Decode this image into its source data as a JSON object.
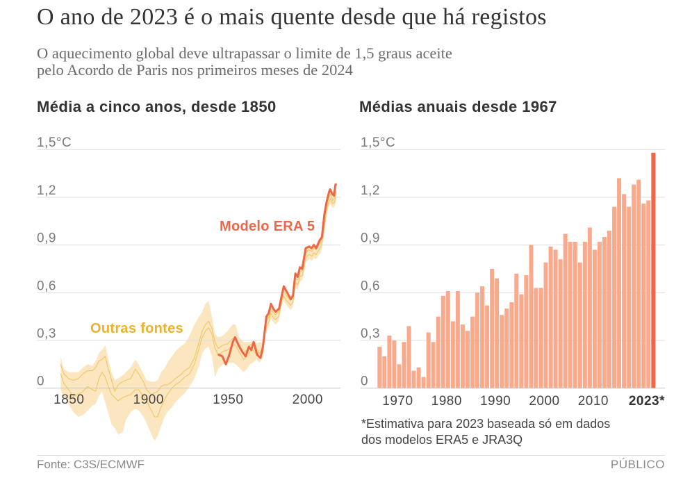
{
  "header": {
    "title": "O ano de 2023 é o mais quente desde que há registos",
    "subtitle_lines": [
      "O aquecimento global deve ultrapassar o limite de 1,5 graus aceite",
      "pelo Acordo de Paris nos primeiros meses de 2024"
    ]
  },
  "colors": {
    "era5": "#ef6646",
    "other_sources_line": "#f0c45c",
    "other_sources_label": "#ebb22e",
    "uncertainty_band": "#fbe6c0",
    "bar": "#f9aa8d",
    "bar_highlight": "#f2674a",
    "text": "#333333",
    "muted_text": "#8a8a8a"
  },
  "chart_data": [
    {
      "type": "line",
      "title": "Média a cinco anos, desde 1850",
      "xlabel": "",
      "ylabel": "°C",
      "xlim": [
        1850,
        2023
      ],
      "ylim": [
        -0.35,
        1.5
      ],
      "grid": true,
      "yticks": [
        0,
        0.3,
        0.6,
        0.9,
        1.2,
        1.5
      ],
      "ytick_labels": [
        "0",
        "0,3",
        "0,6",
        "0,9",
        "1,2",
        "1,5°C"
      ],
      "xticks": [
        1850,
        1900,
        1950,
        2000
      ],
      "xtick_labels": [
        "1850",
        "1900",
        "1950",
        "2000"
      ],
      "series": [
        {
          "name": "Modelo ERA 5",
          "label": "Modelo ERA 5",
          "color": "#ef6646",
          "x": [
            1949.4,
            1951.6,
            1953.8,
            1956,
            1958.2,
            1959.6,
            1961.8,
            1964,
            1966.2,
            1968.3,
            1969.8,
            1971.3,
            1973.5,
            1975.6,
            1977.1,
            1979.3,
            1980.7,
            1982.2,
            1983.6,
            1985.1,
            1987.3,
            1988.7,
            1990.2,
            1992.4,
            1994.6,
            1996,
            1997.5,
            1999,
            2000.4,
            2001.8,
            2004,
            2006.2,
            2007.7,
            2009.1,
            2010.6,
            2012.8,
            2014.2,
            2015.7,
            2017.1,
            2018.6,
            2019.3,
            2020.8,
            2021.8,
            2022.7,
            2023
          ],
          "y": [
            0.21,
            0.2,
            0.15,
            0.21,
            0.29,
            0.32,
            0.27,
            0.23,
            0.2,
            0.26,
            0.24,
            0.29,
            0.21,
            0.19,
            0.26,
            0.45,
            0.47,
            0.53,
            0.5,
            0.48,
            0.5,
            0.57,
            0.64,
            0.6,
            0.56,
            0.58,
            0.72,
            0.7,
            0.76,
            0.75,
            0.88,
            0.89,
            0.88,
            0.9,
            0.88,
            0.93,
            0.95,
            1.09,
            1.17,
            1.23,
            1.25,
            1.22,
            1.21,
            1.28,
            1.28
          ]
        },
        {
          "name": "Outras fontes",
          "label": "Outras fontes",
          "color": "#f0c45c",
          "label_color": "#ebb22e",
          "band_color": "#fbe6c0",
          "x": [
            1850,
            1852,
            1855,
            1858,
            1861,
            1864,
            1867,
            1870,
            1872,
            1874,
            1876,
            1878,
            1880,
            1882,
            1884,
            1886,
            1889,
            1891,
            1894,
            1897,
            1899,
            1902,
            1904,
            1907,
            1909,
            1911,
            1913,
            1915,
            1917,
            1920,
            1922,
            1925,
            1928,
            1931,
            1934,
            1937,
            1939,
            1941,
            1943,
            1945,
            1947,
            1949,
            1952,
            1955,
            1958,
            1960,
            1962,
            1965,
            1967,
            1969,
            1971,
            1973,
            1975,
            1977,
            1979,
            1981,
            1982,
            1984,
            1985,
            1987,
            1989,
            1990,
            1992,
            1994.5,
            1996,
            1997.5,
            1999,
            2000.5,
            2002,
            2004,
            2006,
            2008,
            2009,
            2010.5,
            2013,
            2014,
            2016,
            2017,
            2018.5,
            2019.5,
            2021,
            2022,
            2023
          ],
          "line_upper": [
            0.15,
            0.09,
            0.06,
            0.05,
            0.06,
            0.09,
            0.11,
            0.11,
            0.13,
            0.17,
            0.18,
            0.2,
            0.12,
            0.05,
            -0.02,
            0.02,
            0.04,
            0.05,
            0.06,
            0.12,
            0.09,
            0.04,
            -0.01,
            -0.04,
            -0.03,
            -0.02,
            0.01,
            0.02,
            0.02,
            0.04,
            0.06,
            0.08,
            0.11,
            0.13,
            0.19,
            0.29,
            0.36,
            0.4,
            0.42,
            0.38,
            0.29,
            0.25,
            0.27,
            0.28,
            0.31,
            0.31,
            0.27,
            0.22,
            0.24,
            0.27,
            0.28,
            0.25,
            0.22,
            0.25,
            0.42,
            0.45,
            0.5,
            0.47,
            0.46,
            0.48,
            0.58,
            0.61,
            0.58,
            0.55,
            0.57,
            0.69,
            0.68,
            0.73,
            0.74,
            0.85,
            0.87,
            0.86,
            0.88,
            0.87,
            0.91,
            0.93,
            1.06,
            1.14,
            1.2,
            1.22,
            1.18,
            1.19,
            1.23
          ],
          "line_lower": [
            0.09,
            0.03,
            -0.01,
            -0.05,
            -0.04,
            -0.02,
            0.01,
            -0.01,
            -0.02,
            0.06,
            0.1,
            0.07,
            0.01,
            -0.04,
            -0.06,
            -0.08,
            -0.06,
            -0.05,
            -0.04,
            -0.01,
            -0.01,
            -0.05,
            -0.08,
            -0.14,
            -0.18,
            -0.18,
            -0.12,
            -0.08,
            -0.04,
            0.0,
            0.02,
            0.04,
            0.07,
            0.09,
            0.15,
            0.25,
            0.32,
            0.36,
            0.38,
            0.34,
            0.25,
            0.21,
            0.23,
            0.24,
            0.27,
            0.27,
            0.23,
            0.18,
            0.2,
            0.23,
            0.24,
            0.21,
            0.19,
            0.22,
            0.38,
            0.42,
            0.47,
            0.44,
            0.43,
            0.45,
            0.55,
            0.58,
            0.55,
            0.52,
            0.54,
            0.66,
            0.65,
            0.7,
            0.71,
            0.82,
            0.84,
            0.83,
            0.85,
            0.84,
            0.88,
            0.9,
            1.03,
            1.11,
            1.17,
            1.19,
            1.16,
            1.17,
            1.2
          ],
          "band_upper": [
            0.2,
            0.12,
            0.1,
            0.1,
            0.1,
            0.13,
            0.15,
            0.14,
            0.17,
            0.22,
            0.24,
            0.27,
            0.18,
            0.1,
            0.05,
            0.06,
            0.08,
            0.1,
            0.13,
            0.18,
            0.15,
            0.09,
            0.05,
            0.04,
            0.04,
            0.05,
            0.1,
            0.12,
            0.16,
            0.2,
            0.23,
            0.26,
            0.28,
            0.33,
            0.4,
            0.45,
            0.48,
            0.53,
            0.55,
            0.45,
            0.34,
            0.32,
            0.33,
            0.36,
            0.4,
            0.4,
            0.32,
            0.29,
            0.29,
            0.29,
            0.3,
            0.28,
            0.29,
            0.28,
            0.45,
            0.48,
            0.53,
            0.5,
            0.49,
            0.51,
            0.61,
            0.64,
            0.61,
            0.58,
            0.6,
            0.72,
            0.71,
            0.76,
            0.77,
            0.88,
            0.9,
            0.89,
            0.91,
            0.9,
            0.94,
            0.96,
            1.09,
            1.17,
            1.23,
            1.25,
            1.21,
            1.22,
            1.26
          ],
          "band_lower": [
            -0.01,
            -0.06,
            -0.1,
            -0.15,
            -0.18,
            -0.17,
            -0.14,
            -0.11,
            -0.1,
            -0.05,
            -0.02,
            -0.09,
            -0.16,
            -0.23,
            -0.25,
            -0.29,
            -0.28,
            -0.2,
            -0.15,
            -0.13,
            -0.14,
            -0.18,
            -0.22,
            -0.29,
            -0.33,
            -0.3,
            -0.24,
            -0.19,
            -0.15,
            -0.12,
            -0.09,
            -0.06,
            -0.03,
            0.01,
            0.06,
            0.14,
            0.22,
            0.25,
            0.26,
            0.2,
            0.07,
            0.12,
            0.15,
            0.16,
            0.16,
            0.15,
            0.13,
            0.1,
            0.12,
            0.15,
            0.16,
            0.18,
            0.16,
            0.19,
            0.35,
            0.39,
            0.44,
            0.41,
            0.4,
            0.42,
            0.52,
            0.55,
            0.52,
            0.49,
            0.51,
            0.63,
            0.62,
            0.67,
            0.68,
            0.79,
            0.81,
            0.8,
            0.82,
            0.81,
            0.85,
            0.87,
            1.0,
            1.08,
            1.14,
            1.16,
            1.13,
            1.14,
            1.17
          ]
        }
      ]
    },
    {
      "type": "bar",
      "title": "Médias anuais desde 1967",
      "xlabel": "",
      "ylabel": "°C",
      "ylim": [
        0,
        1.5
      ],
      "grid": true,
      "yticks": [
        0,
        0.3,
        0.6,
        0.9,
        1.2,
        1.5
      ],
      "ytick_labels": [
        "0",
        "0,3",
        "0,6",
        "0,9",
        "1,2",
        "1,5°C"
      ],
      "xticks": [
        1970,
        1980,
        1990,
        2000,
        2010
      ],
      "xtick_labels": [
        "1970",
        "1980",
        "1990",
        "2000",
        "2010"
      ],
      "highlight": 2023,
      "highlight_label": "2023*",
      "bar_color": "#f9aa8d",
      "highlight_color": "#f2674a",
      "categories": [
        1967,
        1968,
        1969,
        1970,
        1971,
        1972,
        1973,
        1974,
        1975,
        1976,
        1977,
        1978,
        1979,
        1980,
        1981,
        1982,
        1983,
        1984,
        1985,
        1986,
        1987,
        1988,
        1989,
        1990,
        1991,
        1992,
        1993,
        1994,
        1995,
        1996,
        1997,
        1998,
        1999,
        2000,
        2001,
        2002,
        2003,
        2004,
        2005,
        2006,
        2007,
        2008,
        2009,
        2010,
        2011,
        2012,
        2013,
        2014,
        2015,
        2016,
        2017,
        2018,
        2019,
        2020,
        2021,
        2022,
        2023
      ],
      "values": [
        0.26,
        0.2,
        0.33,
        0.3,
        0.15,
        0.29,
        0.39,
        0.11,
        0.13,
        0.07,
        0.35,
        0.29,
        0.45,
        0.58,
        0.61,
        0.42,
        0.61,
        0.4,
        0.36,
        0.45,
        0.6,
        0.64,
        0.52,
        0.75,
        0.69,
        0.46,
        0.5,
        0.54,
        0.72,
        0.59,
        0.71,
        0.9,
        0.63,
        0.63,
        0.79,
        0.89,
        0.87,
        0.81,
        0.97,
        0.92,
        0.92,
        0.79,
        0.92,
        1.01,
        0.87,
        0.92,
        0.95,
        0.99,
        1.14,
        1.32,
        1.22,
        1.14,
        1.28,
        1.31,
        1.16,
        1.18,
        1.48
      ],
      "note_lines": [
        "*Estimativa para 2023 baseada só em dados",
        "dos modelos ERA5 e JRA3Q"
      ]
    }
  ],
  "footer": {
    "source": "Fonte: C3S/ECMWF",
    "brand": "PÚBLICO"
  }
}
